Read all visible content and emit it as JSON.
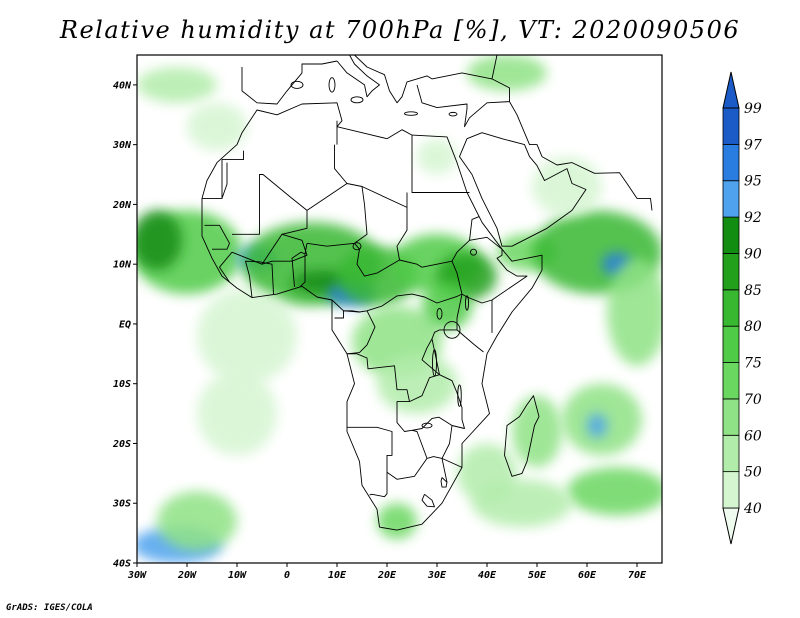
{
  "title": "Relative humidity at 700hPa [%], VT: 2020090506",
  "credit": "GrADS: IGES/COLA",
  "map": {
    "lon_range": [
      -30,
      75
    ],
    "lat_range": [
      -40,
      45
    ],
    "lon_ticks": [
      {
        "value": -30,
        "label": "30W"
      },
      {
        "value": -20,
        "label": "20W"
      },
      {
        "value": -10,
        "label": "10W"
      },
      {
        "value": 0,
        "label": "0"
      },
      {
        "value": 10,
        "label": "10E"
      },
      {
        "value": 20,
        "label": "20E"
      },
      {
        "value": 30,
        "label": "30E"
      },
      {
        "value": 40,
        "label": "40E"
      },
      {
        "value": 50,
        "label": "50E"
      },
      {
        "value": 60,
        "label": "60E"
      },
      {
        "value": 70,
        "label": "70E"
      }
    ],
    "lat_ticks": [
      {
        "value": 40,
        "label": "40N"
      },
      {
        "value": 30,
        "label": "30N"
      },
      {
        "value": 20,
        "label": "20N"
      },
      {
        "value": 10,
        "label": "10N"
      },
      {
        "value": 0,
        "label": "EQ"
      },
      {
        "value": -10,
        "label": "10S"
      },
      {
        "value": -20,
        "label": "20S"
      },
      {
        "value": -30,
        "label": "30S"
      },
      {
        "value": -40,
        "label": "40S"
      }
    ]
  },
  "colorbar": {
    "levels": [
      "40",
      "50",
      "60",
      "70",
      "75",
      "80",
      "85",
      "90",
      "92",
      "95",
      "97",
      "99"
    ],
    "colors": [
      "#f0fbef",
      "#d5f5d1",
      "#b2ecab",
      "#8fe285",
      "#6ad760",
      "#4fcb47",
      "#38b830",
      "#22a01c",
      "#138c12",
      "#4ea2ee",
      "#2a7de0",
      "#1a5bc8"
    ]
  },
  "field_blobs": [
    {
      "lon": -22,
      "lat": 40,
      "rx": 8,
      "ry": 3,
      "level": 2
    },
    {
      "lon": -14,
      "lat": 33,
      "rx": 6,
      "ry": 4,
      "level": 1
    },
    {
      "lon": -20,
      "lat": 12,
      "rx": 11,
      "ry": 7,
      "level": 5
    },
    {
      "lon": -26,
      "lat": 14,
      "rx": 5,
      "ry": 5,
      "level": 8
    },
    {
      "lon": -6,
      "lat": 11,
      "rx": 4,
      "ry": 2,
      "level": 9
    },
    {
      "lon": 5,
      "lat": 10,
      "rx": 14,
      "ry": 7,
      "level": 6
    },
    {
      "lon": 7,
      "lat": 7,
      "rx": 6,
      "ry": 2,
      "level": 8
    },
    {
      "lon": 13,
      "lat": 5,
      "rx": 5,
      "ry": 2,
      "level": 10
    },
    {
      "lon": 18,
      "lat": 8,
      "rx": 8,
      "ry": 5,
      "level": 6
    },
    {
      "lon": 30,
      "lat": 10,
      "rx": 9,
      "ry": 5,
      "level": 5
    },
    {
      "lon": 36,
      "lat": 8,
      "rx": 6,
      "ry": 4,
      "level": 7
    },
    {
      "lon": 22,
      "lat": -3,
      "rx": 9,
      "ry": 6,
      "level": 3
    },
    {
      "lon": 26,
      "lat": -10,
      "rx": 8,
      "ry": 5,
      "level": 2
    },
    {
      "lon": 32,
      "lat": 3,
      "rx": 5,
      "ry": 4,
      "level": 5
    },
    {
      "lon": 48,
      "lat": 12,
      "rx": 6,
      "ry": 3,
      "level": 4
    },
    {
      "lon": 62,
      "lat": 12,
      "rx": 13,
      "ry": 7,
      "level": 6
    },
    {
      "lon": 66,
      "lat": 10,
      "rx": 3,
      "ry": 2,
      "level": 10
    },
    {
      "lon": 70,
      "lat": 2,
      "rx": 6,
      "ry": 9,
      "level": 3
    },
    {
      "lon": 63,
      "lat": -16,
      "rx": 8,
      "ry": 6,
      "level": 3
    },
    {
      "lon": 62,
      "lat": -17,
      "rx": 2,
      "ry": 2,
      "level": 9
    },
    {
      "lon": 50,
      "lat": -18,
      "rx": 5,
      "ry": 6,
      "level": 3
    },
    {
      "lon": 66,
      "lat": -28,
      "rx": 10,
      "ry": 4,
      "level": 4
    },
    {
      "lon": -8,
      "lat": -2,
      "rx": 10,
      "ry": 8,
      "level": 1
    },
    {
      "lon": -10,
      "lat": -15,
      "rx": 8,
      "ry": 7,
      "level": 1
    },
    {
      "lon": 40,
      "lat": -25,
      "rx": 6,
      "ry": 5,
      "level": 2
    },
    {
      "lon": 47,
      "lat": -30,
      "rx": 10,
      "ry": 4,
      "level": 2
    },
    {
      "lon": -22,
      "lat": -37,
      "rx": 9,
      "ry": 3,
      "level": 9
    },
    {
      "lon": -18,
      "lat": -33,
      "rx": 8,
      "ry": 5,
      "level": 3
    },
    {
      "lon": 22,
      "lat": -33,
      "rx": 4,
      "ry": 3,
      "level": 4
    },
    {
      "lon": 44,
      "lat": 42,
      "rx": 8,
      "ry": 3,
      "level": 3
    },
    {
      "lon": 30,
      "lat": 28,
      "rx": 4,
      "ry": 3,
      "level": 1
    },
    {
      "lon": 56,
      "lat": 23,
      "rx": 7,
      "ry": 5,
      "level": 1
    }
  ],
  "africa_outline": [
    [
      -17,
      21
    ],
    [
      -16,
      24
    ],
    [
      -14,
      27
    ],
    [
      -10,
      30
    ],
    [
      -9,
      32
    ],
    [
      -6,
      35.8
    ],
    [
      -2,
      35
    ],
    [
      3,
      36.8
    ],
    [
      10,
      37
    ],
    [
      11,
      34
    ],
    [
      10,
      33
    ],
    [
      15,
      32
    ],
    [
      20,
      31
    ],
    [
      23,
      32.5
    ],
    [
      25,
      31.6
    ],
    [
      32,
      31.3
    ],
    [
      34,
      27
    ],
    [
      36,
      22
    ],
    [
      39,
      17
    ],
    [
      43,
      12.5
    ],
    [
      45,
      10.5
    ],
    [
      51,
      11.5
    ],
    [
      51,
      9
    ],
    [
      49,
      6
    ],
    [
      45,
      2
    ],
    [
      42,
      -2
    ],
    [
      40,
      -5
    ],
    [
      39,
      -10
    ],
    [
      40.5,
      -15
    ],
    [
      35,
      -20
    ],
    [
      35,
      -24
    ],
    [
      33,
      -27
    ],
    [
      31,
      -30
    ],
    [
      27,
      -33.5
    ],
    [
      22,
      -34.5
    ],
    [
      18.5,
      -34
    ],
    [
      18,
      -31
    ],
    [
      15,
      -27
    ],
    [
      14.5,
      -23
    ],
    [
      12,
      -18
    ],
    [
      12,
      -13
    ],
    [
      13.5,
      -10
    ],
    [
      12,
      -5
    ],
    [
      9,
      -1
    ],
    [
      9,
      4
    ],
    [
      6,
      4.5
    ],
    [
      3,
      6.3
    ],
    [
      -2,
      5
    ],
    [
      -7,
      4.4
    ],
    [
      -10,
      6
    ],
    [
      -13,
      8
    ],
    [
      -15,
      11
    ],
    [
      -17,
      14.7
    ]
  ],
  "madagascar_outline": [
    [
      49.3,
      -12
    ],
    [
      50.4,
      -15.5
    ],
    [
      49.5,
      -17
    ],
    [
      48,
      -23
    ],
    [
      47,
      -25
    ],
    [
      45,
      -25.5
    ],
    [
      43.5,
      -22
    ],
    [
      44,
      -17
    ],
    [
      46.5,
      -15.5
    ],
    [
      48,
      -13.5
    ]
  ],
  "arabia_outline": [
    [
      34.5,
      28
    ],
    [
      36,
      31
    ],
    [
      39,
      32
    ],
    [
      43,
      31
    ],
    [
      47.5,
      30
    ],
    [
      48.5,
      28
    ],
    [
      50,
      26.5
    ],
    [
      51.5,
      24
    ],
    [
      56,
      26
    ],
    [
      57,
      23.5
    ],
    [
      59.8,
      22.5
    ],
    [
      57,
      19
    ],
    [
      52,
      16
    ],
    [
      45,
      13
    ],
    [
      43,
      13
    ],
    [
      42,
      16
    ],
    [
      39,
      21
    ],
    [
      37,
      25
    ]
  ],
  "europe_outline": [
    [
      -9,
      43
    ],
    [
      -9,
      39
    ],
    [
      -6,
      37
    ],
    [
      -2,
      36.8
    ],
    [
      0,
      39
    ],
    [
      3,
      42
    ],
    [
      3,
      43.5
    ],
    [
      7,
      43.5
    ],
    [
      10,
      44
    ]
  ],
  "italy_outline": [
    [
      10,
      44
    ],
    [
      12,
      42
    ],
    [
      15.5,
      40
    ],
    [
      16,
      38
    ],
    [
      17,
      39
    ],
    [
      18.5,
      40
    ],
    [
      16,
      41.5
    ],
    [
      13.5,
      43.5
    ],
    [
      12.5,
      45
    ]
  ],
  "balkans_outline": [
    [
      13.5,
      45
    ],
    [
      16,
      43
    ],
    [
      19.5,
      41.7
    ],
    [
      20.5,
      39
    ],
    [
      22,
      37
    ],
    [
      23,
      38
    ],
    [
      24,
      40.5
    ],
    [
      26,
      41
    ],
    [
      28,
      41.5
    ],
    [
      29,
      41
    ],
    [
      35,
      42
    ],
    [
      41,
      41
    ],
    [
      42,
      45
    ]
  ],
  "turkey_outline": [
    [
      26,
      40
    ],
    [
      27,
      37
    ],
    [
      30,
      36.2
    ],
    [
      36,
      36.8
    ],
    [
      36,
      36
    ],
    [
      35.5,
      33
    ],
    [
      36.5,
      34.5
    ],
    [
      40,
      37
    ],
    [
      44.5,
      37.2
    ],
    [
      44.5,
      39.5
    ],
    [
      41,
      41
    ]
  ],
  "persia_outline": [
    [
      44.5,
      37.2
    ],
    [
      46,
      35
    ],
    [
      47.5,
      32
    ],
    [
      48.5,
      30
    ],
    [
      50,
      30
    ],
    [
      51,
      28
    ],
    [
      54,
      26.6
    ],
    [
      57,
      27
    ],
    [
      61.5,
      25.2
    ],
    [
      66.5,
      25.3
    ],
    [
      68,
      23.5
    ],
    [
      70,
      21
    ],
    [
      72.7,
      21
    ],
    [
      73,
      19
    ]
  ],
  "internal_borders": [
    [
      [
        -17,
        21
      ],
      [
        -13,
        21
      ],
      [
        -13,
        27.5
      ],
      [
        -8.7,
        27.5
      ],
      [
        -8.7,
        29
      ]
    ],
    [
      [
        -13,
        21
      ],
      [
        -12,
        23.4
      ],
      [
        -12,
        27
      ]
    ],
    [
      [
        -11,
        15
      ],
      [
        -5.5,
        15
      ],
      [
        -5.5,
        25
      ],
      [
        -4.8,
        25
      ],
      [
        1,
        21
      ],
      [
        4,
        19
      ],
      [
        4,
        16
      ],
      [
        -1,
        15
      ],
      [
        -5,
        10
      ],
      [
        -11,
        12
      ]
    ],
    [
      [
        -1,
        15
      ],
      [
        3,
        14
      ],
      [
        4,
        11.5
      ],
      [
        1,
        10.5
      ],
      [
        -3,
        10.5
      ],
      [
        -5,
        10
      ]
    ],
    [
      [
        4,
        19
      ],
      [
        12,
        23.5
      ],
      [
        15,
        23
      ],
      [
        15.5,
        20
      ],
      [
        16,
        15
      ],
      [
        13.5,
        13.5
      ],
      [
        8,
        13
      ],
      [
        4,
        13.5
      ]
    ],
    [
      [
        9.5,
        30
      ],
      [
        9.5,
        26
      ],
      [
        11.5,
        24
      ],
      [
        12,
        23.5
      ]
    ],
    [
      [
        10,
        34
      ],
      [
        10,
        30
      ]
    ],
    [
      [
        15,
        23
      ],
      [
        24,
        19.5
      ],
      [
        24,
        15.7
      ],
      [
        22,
        13
      ],
      [
        22.5,
        10.7
      ],
      [
        18,
        8.5
      ],
      [
        15.5,
        8
      ],
      [
        14,
        10
      ],
      [
        14.5,
        12.5
      ],
      [
        13.5,
        13.5
      ]
    ],
    [
      [
        25,
        31.6
      ],
      [
        25,
        22
      ],
      [
        36.5,
        22
      ]
    ],
    [
      [
        24,
        19.5
      ],
      [
        24,
        22
      ]
    ],
    [
      [
        22.5,
        10.7
      ],
      [
        26,
        10
      ],
      [
        27,
        9.5
      ],
      [
        33,
        10.5
      ],
      [
        34,
        8.5
      ],
      [
        35,
        5
      ],
      [
        34,
        4.6
      ],
      [
        30,
        3.5
      ],
      [
        27.5,
        4.5
      ],
      [
        25,
        5
      ],
      [
        22,
        4.7
      ],
      [
        19,
        3
      ],
      [
        16,
        2.2
      ],
      [
        14.5,
        2
      ],
      [
        11.3,
        2.2
      ]
    ],
    [
      [
        33,
        10.5
      ],
      [
        34,
        12
      ],
      [
        36.5,
        14
      ],
      [
        37,
        17.5
      ],
      [
        38.5,
        18
      ]
    ],
    [
      [
        36.5,
        14
      ],
      [
        40,
        14.5
      ],
      [
        43,
        12.5
      ],
      [
        43,
        11.5
      ],
      [
        42,
        11
      ],
      [
        44,
        9
      ],
      [
        46,
        8
      ],
      [
        48,
        8
      ],
      [
        41,
        4
      ],
      [
        39,
        3.5
      ],
      [
        36,
        4.5
      ],
      [
        35,
        5
      ]
    ],
    [
      [
        41,
        4
      ],
      [
        41,
        -1.5
      ]
    ],
    [
      [
        35,
        5
      ],
      [
        34,
        1
      ],
      [
        34,
        -1
      ],
      [
        37.5,
        -3.5
      ],
      [
        39.3,
        -4.7
      ]
    ],
    [
      [
        34,
        -1
      ],
      [
        30.5,
        -1
      ],
      [
        29.5,
        -1.4
      ],
      [
        29,
        -2.5
      ],
      [
        29.5,
        -4.5
      ],
      [
        30.5,
        -8.5
      ],
      [
        33,
        -9.5
      ],
      [
        34,
        -11.5
      ],
      [
        35,
        -14
      ],
      [
        35,
        -16
      ],
      [
        35.5,
        -17.5
      ],
      [
        33,
        -17
      ],
      [
        32.5,
        -20
      ],
      [
        31,
        -22.5
      ],
      [
        32,
        -26.5
      ]
    ],
    [
      [
        29,
        -2.5
      ],
      [
        28,
        -4
      ],
      [
        27,
        -6
      ],
      [
        30.5,
        -8.5
      ]
    ],
    [
      [
        12,
        -5
      ],
      [
        14,
        -5
      ],
      [
        16,
        -5.7
      ],
      [
        16.2,
        -7.5
      ],
      [
        21.5,
        -7
      ],
      [
        22,
        -11
      ],
      [
        24,
        -11
      ],
      [
        24.5,
        -13
      ],
      [
        27,
        -12
      ],
      [
        28.5,
        -9
      ],
      [
        30.5,
        -8.5
      ]
    ],
    [
      [
        16,
        2.2
      ],
      [
        17.6,
        -0.5
      ],
      [
        16,
        -3.5
      ],
      [
        14.5,
        -4.8
      ],
      [
        12,
        -5
      ]
    ],
    [
      [
        14.5,
        2
      ],
      [
        13,
        2.2
      ],
      [
        11.3,
        2.2
      ],
      [
        11.3,
        1
      ],
      [
        9.5,
        1
      ]
    ],
    [
      [
        24.5,
        -13
      ],
      [
        22,
        -13
      ],
      [
        22,
        -16.5
      ],
      [
        23.5,
        -18
      ],
      [
        25,
        -17.8
      ],
      [
        27,
        -17.5
      ],
      [
        29,
        -15.8
      ],
      [
        30.4,
        -15.6
      ],
      [
        33,
        -17
      ]
    ],
    [
      [
        12,
        -17.3
      ],
      [
        18,
        -17.3
      ],
      [
        21,
        -18
      ],
      [
        21,
        -22
      ],
      [
        20,
        -22
      ],
      [
        20,
        -24.8
      ],
      [
        20,
        -28.4
      ],
      [
        19.5,
        -28.9
      ],
      [
        17,
        -28.5
      ],
      [
        16.5,
        -28.6
      ]
    ],
    [
      [
        20,
        -24.8
      ],
      [
        22,
        -26
      ],
      [
        25.5,
        -25.5
      ],
      [
        28,
        -22.5
      ],
      [
        29.3,
        -22.2
      ],
      [
        31,
        -22.5
      ]
    ],
    [
      [
        28,
        -22.5
      ],
      [
        26,
        -18
      ],
      [
        25,
        -17.8
      ]
    ],
    [
      [
        27.5,
        -28.5
      ],
      [
        29,
        -29.5
      ],
      [
        29.5,
        -30.6
      ],
      [
        28,
        -30.5
      ],
      [
        27,
        -29.5
      ],
      [
        27.5,
        -28.5
      ]
    ],
    [
      [
        31,
        -25.7
      ],
      [
        32,
        -26.5
      ],
      [
        31.8,
        -27.3
      ],
      [
        31,
        -27.3
      ],
      [
        30.8,
        -26.3
      ],
      [
        31,
        -25.7
      ]
    ],
    [
      [
        9,
        4
      ],
      [
        11.3,
        2.2
      ]
    ],
    [
      [
        -7,
        4.4
      ],
      [
        -7.5,
        8
      ],
      [
        -8.3,
        10.5
      ],
      [
        -5.5,
        10.4
      ],
      [
        -3,
        10
      ],
      [
        -2.7,
        5
      ]
    ],
    [
      [
        1.5,
        6.2
      ],
      [
        1,
        11
      ],
      [
        2.8,
        12
      ],
      [
        3.6,
        11.7
      ],
      [
        3.6,
        7
      ],
      [
        2.7,
        6.3
      ]
    ],
    [
      [
        4,
        13.5
      ],
      [
        3.6,
        11.7
      ]
    ],
    [
      [
        -15,
        12.5
      ],
      [
        -12,
        12.5
      ],
      [
        -11.5,
        13.5
      ],
      [
        -13.5,
        16.5
      ],
      [
        -16.5,
        16.5
      ]
    ],
    [
      [
        -11,
        12
      ],
      [
        -13.5,
        9.5
      ],
      [
        -11.5,
        7
      ]
    ],
    [
      [
        31,
        -22.5
      ],
      [
        35,
        -24
      ]
    ]
  ],
  "lakes": [
    {
      "lon": 33,
      "lat": -1,
      "rx": 1.6,
      "ry": 1.4
    },
    {
      "lon": 29.5,
      "lat": -6.5,
      "rx": 0.4,
      "ry": 2.2
    },
    {
      "lon": 34.5,
      "lat": -12,
      "rx": 0.35,
      "ry": 1.8
    },
    {
      "lon": 36,
      "lat": 3.5,
      "rx": 0.3,
      "ry": 1.2
    },
    {
      "lon": 37.3,
      "lat": 12,
      "rx": 0.6,
      "ry": 0.5
    },
    {
      "lon": 14,
      "lat": 13,
      "rx": 0.8,
      "ry": 0.6
    },
    {
      "lon": 30.5,
      "lat": 1.7,
      "rx": 0.5,
      "ry": 0.9
    },
    {
      "lon": 28,
      "lat": -17,
      "rx": 1,
      "ry": 0.4
    },
    {
      "lon": 2,
      "lat": 40,
      "rx": 1.2,
      "ry": 0.6
    },
    {
      "lon": 9,
      "lat": 40,
      "rx": 0.6,
      "ry": 1.2
    },
    {
      "lon": 14,
      "lat": 37.5,
      "rx": 1.2,
      "ry": 0.5
    },
    {
      "lon": 24.8,
      "lat": 35.2,
      "rx": 1.3,
      "ry": 0.3
    },
    {
      "lon": 33.2,
      "lat": 35.1,
      "rx": 0.8,
      "ry": 0.3
    }
  ]
}
